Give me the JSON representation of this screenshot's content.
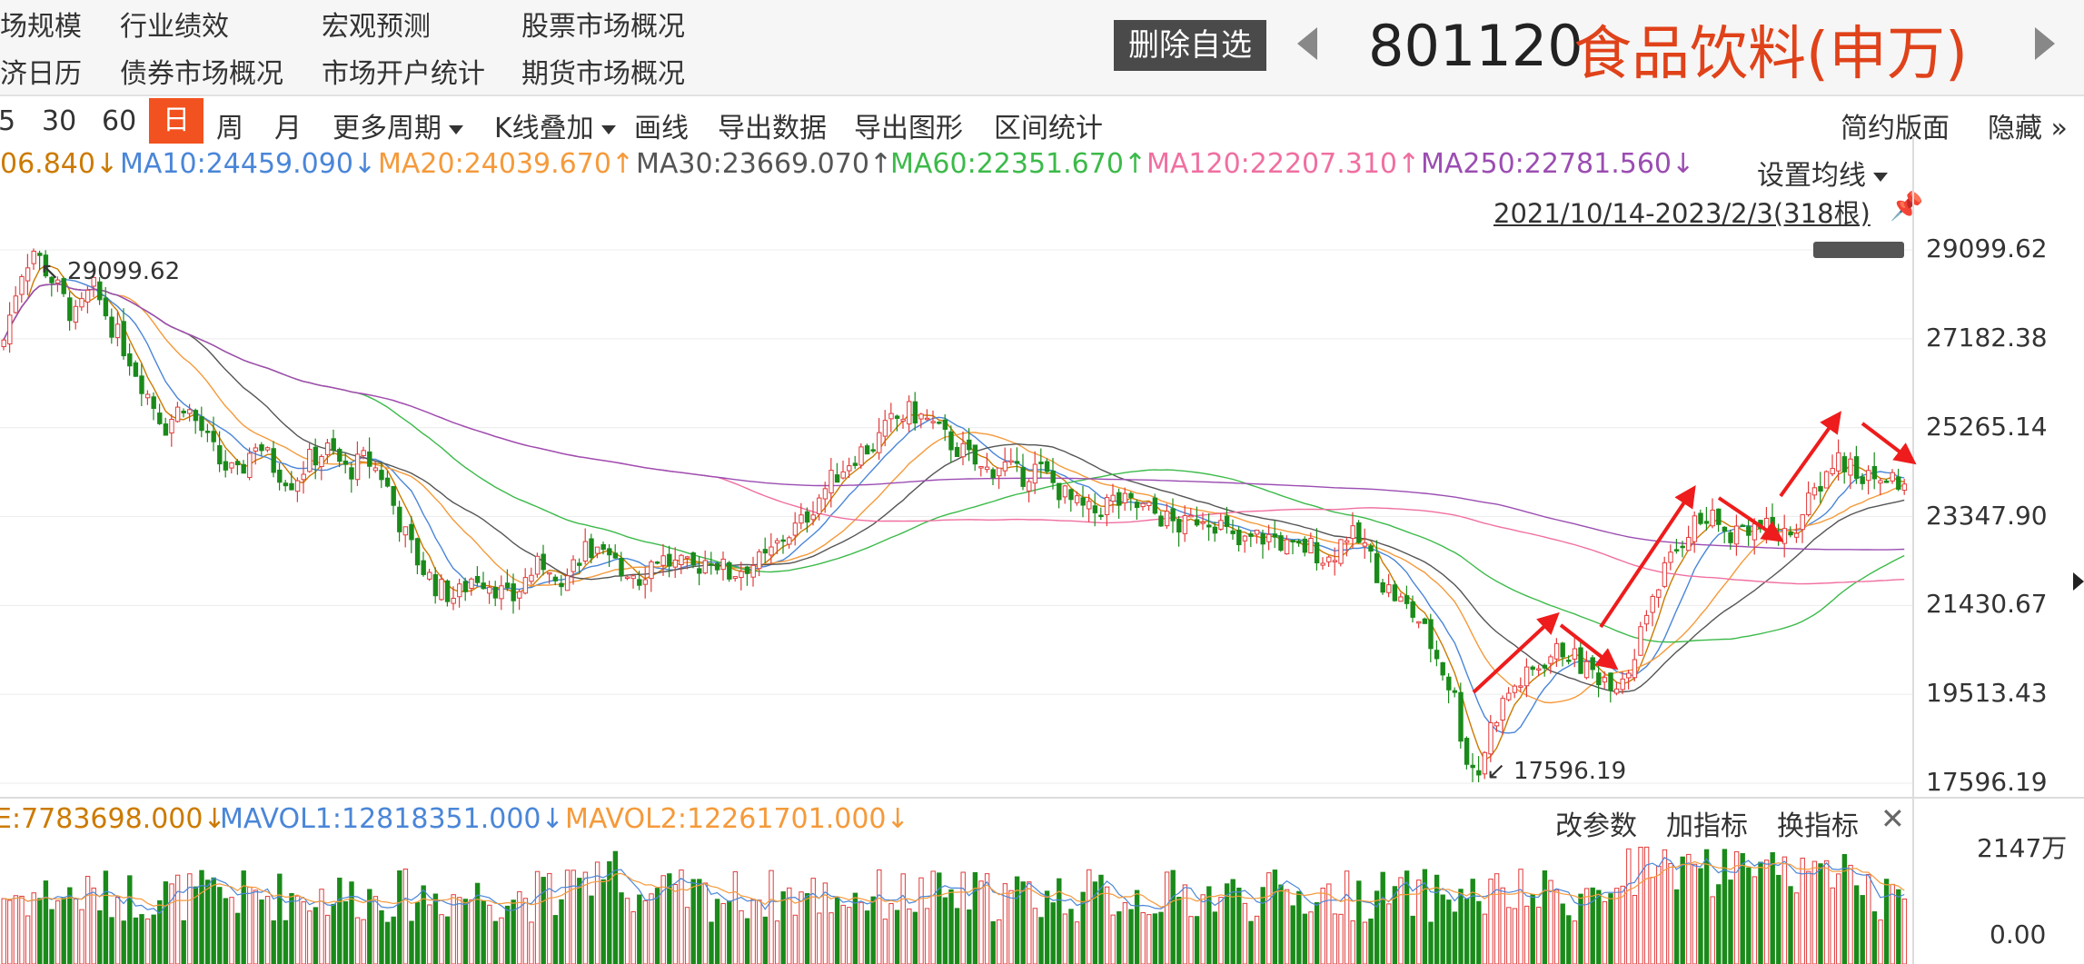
{
  "nav": {
    "links": [
      {
        "label": "场规模",
        "col": 0,
        "row": 0
      },
      {
        "label": "行业绩效",
        "col": 1,
        "row": 0
      },
      {
        "label": "宏观预测",
        "col": 2,
        "row": 0
      },
      {
        "label": "股票市场概况",
        "col": 3,
        "row": 0
      },
      {
        "label": "济日历",
        "col": 0,
        "row": 1
      },
      {
        "label": "债券市场概况",
        "col": 1,
        "row": 1
      },
      {
        "label": "市场开户统计",
        "col": 2,
        "row": 1
      },
      {
        "label": "期货市场概况",
        "col": 3,
        "row": 1
      }
    ]
  },
  "stock": {
    "remove_label": "删除自选",
    "code": "801120",
    "name": "食品饮料(申万)"
  },
  "toolbar": {
    "items": [
      "5",
      "30",
      "60",
      "日",
      "周",
      "月",
      "更多周期",
      "K线叠加",
      "画线",
      "导出数据",
      "导出图形",
      "区间统计"
    ],
    "active": "日",
    "simple_layout": "简约版面",
    "hide": "隐藏"
  },
  "ma_legend": [
    {
      "label": "06.840",
      "arrow": "↓",
      "color": "#cc7a00"
    },
    {
      "label": "MA10:24459.090",
      "arrow": "↓",
      "color": "#4a86d8"
    },
    {
      "label": "MA20:24039.670",
      "arrow": "↑",
      "color": "#f59a3b"
    },
    {
      "label": "MA30:23669.070",
      "arrow": "↑",
      "color": "#555555"
    },
    {
      "label": "MA60:22351.670",
      "arrow": "↑",
      "color": "#3cba4a"
    },
    {
      "label": "MA120:22207.310",
      "arrow": "↑",
      "color": "#f06fa0"
    },
    {
      "label": "MA250:22781.560",
      "arrow": "↓",
      "color": "#9b4db2"
    }
  ],
  "ma_settings": "设置均线",
  "date_range": "2021/10/14-2023/2/3(318根)",
  "chart_data": {
    "type": "candlestick",
    "price_axis_ticks": [
      "29099.62",
      "27182.38",
      "25265.14",
      "23347.90",
      "21430.67",
      "19513.43",
      "17596.19"
    ],
    "price_range": [
      17596.19,
      29099.62
    ],
    "high_annotation": "29099.62",
    "low_annotation": "17596.19",
    "price_series": [
      [
        0,
        27000
      ],
      [
        20,
        28600
      ],
      [
        35,
        29099.62
      ],
      [
        60,
        28300
      ],
      [
        80,
        27600
      ],
      [
        100,
        28300
      ],
      [
        120,
        27500
      ],
      [
        140,
        26800
      ],
      [
        160,
        26000
      ],
      [
        180,
        25300
      ],
      [
        200,
        25800
      ],
      [
        220,
        25200
      ],
      [
        240,
        24500
      ],
      [
        260,
        24200
      ],
      [
        280,
        25000
      ],
      [
        300,
        24400
      ],
      [
        320,
        24100
      ],
      [
        340,
        24600
      ],
      [
        360,
        24800
      ],
      [
        380,
        24300
      ],
      [
        400,
        24600
      ],
      [
        420,
        24200
      ],
      [
        440,
        23100
      ],
      [
        460,
        22300
      ],
      [
        480,
        21800
      ],
      [
        500,
        21600
      ],
      [
        520,
        22100
      ],
      [
        540,
        21900
      ],
      [
        560,
        21500
      ],
      [
        580,
        22100
      ],
      [
        600,
        22400
      ],
      [
        620,
        22000
      ],
      [
        640,
        22700
      ],
      [
        660,
        22400
      ],
      [
        680,
        22300
      ],
      [
        700,
        22000
      ],
      [
        720,
        22500
      ],
      [
        740,
        22300
      ],
      [
        760,
        22200
      ],
      [
        780,
        22500
      ],
      [
        800,
        22100
      ],
      [
        820,
        22300
      ],
      [
        840,
        22400
      ],
      [
        860,
        22900
      ],
      [
        880,
        23200
      ],
      [
        900,
        23800
      ],
      [
        920,
        24300
      ],
      [
        940,
        24700
      ],
      [
        960,
        24900
      ],
      [
        980,
        25400
      ],
      [
        1000,
        25600
      ],
      [
        1020,
        25400
      ],
      [
        1040,
        25000
      ],
      [
        1060,
        24700
      ],
      [
        1080,
        24300
      ],
      [
        1100,
        24500
      ],
      [
        1120,
        24200
      ],
      [
        1140,
        24400
      ],
      [
        1160,
        24000
      ],
      [
        1180,
        23600
      ],
      [
        1200,
        23400
      ],
      [
        1220,
        23700
      ],
      [
        1240,
        23600
      ],
      [
        1260,
        23500
      ],
      [
        1280,
        23300
      ],
      [
        1300,
        23100
      ],
      [
        1320,
        23400
      ],
      [
        1340,
        23200
      ],
      [
        1360,
        22700
      ],
      [
        1380,
        22900
      ],
      [
        1400,
        22900
      ],
      [
        1420,
        22600
      ],
      [
        1440,
        22700
      ],
      [
        1460,
        22400
      ],
      [
        1480,
        23000
      ],
      [
        1500,
        22700
      ],
      [
        1520,
        21900
      ],
      [
        1540,
        21500
      ],
      [
        1560,
        21100
      ],
      [
        1580,
        20300
      ],
      [
        1600,
        19400
      ],
      [
        1610,
        18200
      ],
      [
        1625,
        17800
      ],
      [
        1640,
        18900
      ],
      [
        1660,
        19600
      ],
      [
        1680,
        19900
      ],
      [
        1700,
        20300
      ],
      [
        1720,
        20500
      ],
      [
        1740,
        20100
      ],
      [
        1760,
        19900
      ],
      [
        1780,
        19800
      ],
      [
        1800,
        20600
      ],
      [
        1820,
        21800
      ],
      [
        1840,
        22500
      ],
      [
        1860,
        23200
      ],
      [
        1880,
        23300
      ],
      [
        1900,
        23000
      ],
      [
        1920,
        23200
      ],
      [
        1940,
        23100
      ],
      [
        1960,
        22900
      ],
      [
        1980,
        23300
      ],
      [
        2000,
        24000
      ],
      [
        2020,
        24600
      ],
      [
        2040,
        24300
      ],
      [
        2060,
        24100
      ],
      [
        2080,
        24200
      ],
      [
        2100,
        23900
      ]
    ],
    "volume_axis_ticks": [
      "2147万",
      "0.00"
    ],
    "volume_legend": [
      {
        "label": "E:7783698.000",
        "arrow": "↓",
        "color": "#cc7a00"
      },
      {
        "label": "MAVOL1:12818351.000",
        "arrow": "↓",
        "color": "#4a86d8"
      },
      {
        "label": "MAVOL2:12261701.000",
        "arrow": "↓",
        "color": "#f59a3b"
      }
    ],
    "colors": {
      "up": "#e23b3b",
      "down": "#1a8a1a",
      "ma5": "#cc7a00",
      "ma10": "#4a86d8",
      "ma20": "#f59a3b",
      "ma30": "#555555",
      "ma60": "#3cba4a",
      "ma120": "#f06fa0",
      "ma250": "#9b4db2",
      "arrow": "#ee1c1c"
    }
  },
  "volume_buttons": [
    "改参数",
    "加指标",
    "换指标"
  ]
}
